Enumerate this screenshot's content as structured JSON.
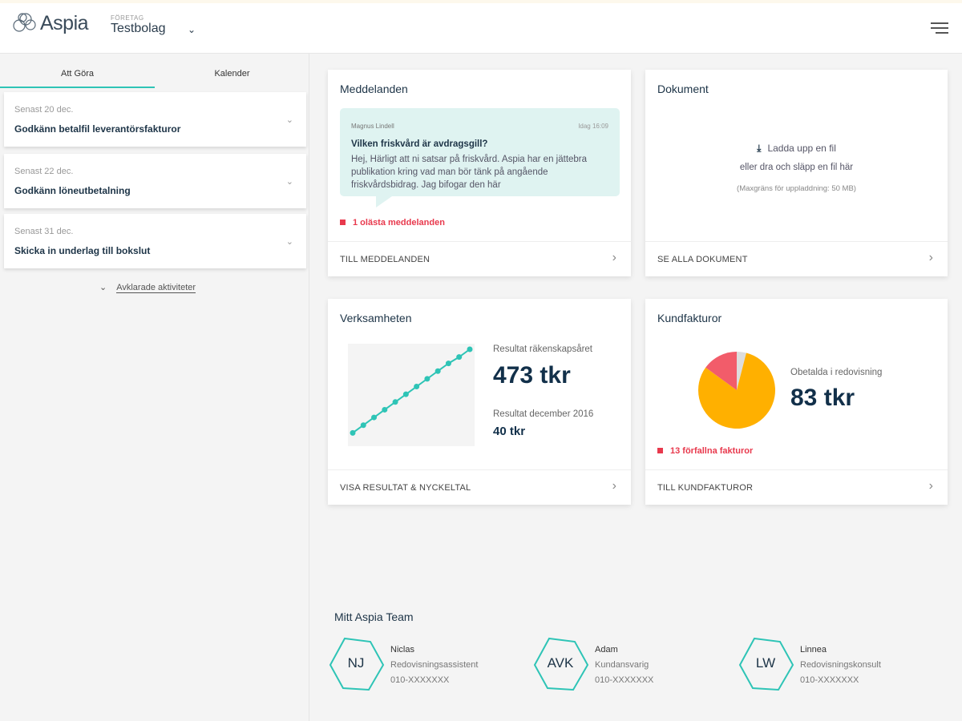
{
  "header": {
    "logo_text": "Aspia",
    "company_label": "FÖRETAG",
    "company_value": "Testbolag"
  },
  "sidebar": {
    "tabs": [
      {
        "label": "Att Göra"
      },
      {
        "label": "Kalender"
      }
    ],
    "tasks": [
      {
        "due": "Senast 20 dec.",
        "title": "Godkänn betalfil leverantörsfakturor"
      },
      {
        "due": "Senast 22 dec.",
        "title": "Godkänn löneutbetalning"
      },
      {
        "due": "Senast 31 dec.",
        "title": "Skicka in underlag till bokslut"
      }
    ],
    "completed_link": "Avklarade aktiviteter"
  },
  "messages": {
    "title": "Meddelanden",
    "from": "Magnus Lindell",
    "time": "Idag 16:09",
    "subject": "Vilken friskvård är avdragsgill?",
    "body": "Hej, Härligt att ni satsar på friskvård. Aspia har en jättebra publikation kring vad man bör tänk på angående friskvårdsbidrag. Jag bifogar den här",
    "unread": "1 olästa meddelanden",
    "footer": "TILL MEDDELANDEN"
  },
  "documents": {
    "title": "Dokument",
    "upload": "Ladda upp en fil",
    "drag": "eller dra och släpp en fil här",
    "limit": "(Maxgräns för uppladdning: 50 MB)",
    "footer": "SE ALLA DOKUMENT"
  },
  "business": {
    "title": "Verksamheten",
    "result_year_label": "Resultat räkenskapsåret",
    "result_year": "473 tkr",
    "result_month_label": "Resultat december 2016",
    "result_month": "40 tkr",
    "footer": "VISA RESULTAT & NYCKELTAL"
  },
  "invoices": {
    "title": "Kundfakturor",
    "unpaid_label": "Obetalda i redovisning",
    "unpaid": "83 tkr",
    "overdue": "13 förfallna fakturor",
    "footer": "TILL KUNDFAKTUROR"
  },
  "chart_data": [
    {
      "type": "line",
      "title": "Verksamheten",
      "x": [
        1,
        2,
        3,
        4,
        5,
        6,
        7,
        8,
        9,
        10,
        11,
        12
      ],
      "values": [
        40,
        80,
        120,
        160,
        200,
        240,
        280,
        320,
        360,
        400,
        433,
        473
      ],
      "color": "#2ec4b6"
    },
    {
      "type": "pie",
      "title": "Kundfakturor",
      "slices": [
        {
          "name": "grå",
          "value": 4,
          "color": "#dddddd"
        },
        {
          "name": "ej förfallna",
          "value": 81,
          "color": "#ffb000"
        },
        {
          "name": "förfallna",
          "value": 15,
          "color": "#f25c6a"
        }
      ]
    }
  ],
  "team": {
    "title": "Mitt Aspia Team",
    "members": [
      {
        "initials": "NJ",
        "name": "Niclas",
        "role": "Redovisningsassistent",
        "phone": "010-XXXXXXX"
      },
      {
        "initials": "AVK",
        "name": "Adam",
        "role": "Kundansvarig",
        "phone": "010-XXXXXXX"
      },
      {
        "initials": "LW",
        "name": "Linnea",
        "role": "Redovisningskonsult",
        "phone": "010-XXXXXXX"
      }
    ]
  }
}
